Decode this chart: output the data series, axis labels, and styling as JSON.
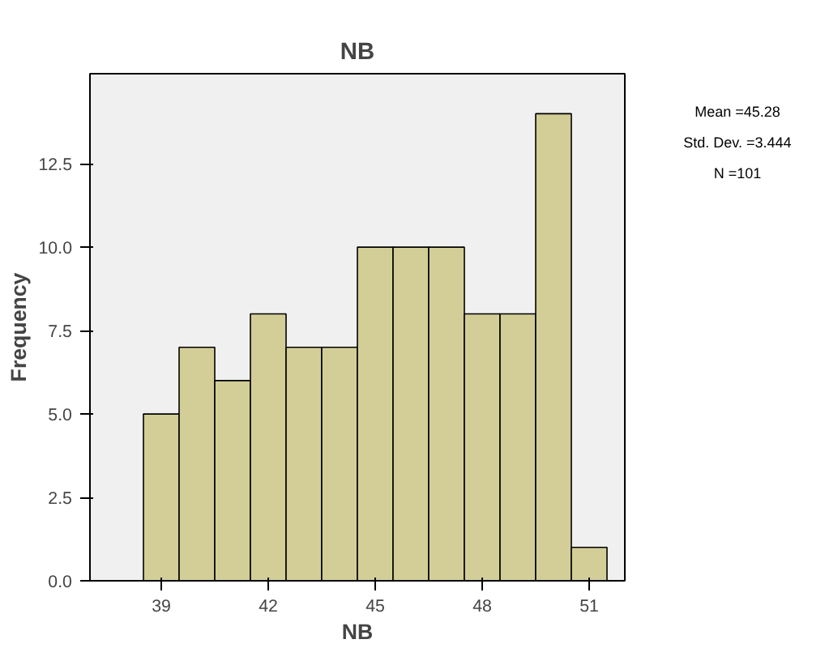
{
  "chart_data": {
    "type": "histogram",
    "title": "NB",
    "xlabel": "NB",
    "ylabel": "Frequency",
    "bins": [
      38.5,
      39.5,
      40.5,
      41.5,
      42.5,
      43.5,
      44.5,
      45.5,
      46.5,
      47.5,
      48.5,
      49.5,
      50.5,
      51.5
    ],
    "values": [
      5,
      7,
      6,
      8,
      7,
      7,
      10,
      10,
      10,
      8,
      8,
      14,
      1
    ],
    "color": "#d3ce97",
    "xlim": [
      37,
      52
    ],
    "xticks": [
      39,
      42,
      45,
      48,
      51
    ],
    "ylim": [
      0,
      15.2
    ],
    "yticks": [
      {
        "value": 0,
        "label": "0.0"
      },
      2.5,
      {
        "value": 5,
        "label": "5.0"
      },
      7.5,
      {
        "value": 10,
        "label": "10.0"
      },
      12.5
    ],
    "grid": false,
    "annotations": [
      "Mean =45.28",
      "Std. Dev. =3.444",
      "N =101"
    ]
  }
}
